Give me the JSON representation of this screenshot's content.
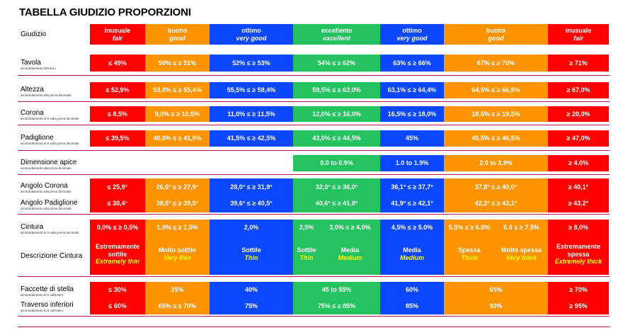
{
  "title": "TABELLA GIUDIZIO PROPORZIONI",
  "rows": {
    "giudizio": {
      "label": "Giudizio",
      "cells": [
        {
          "it": "inusuale",
          "en": "fair"
        },
        {
          "it": "buono",
          "en": "good"
        },
        {
          "it": "ottimo",
          "en": "very good"
        },
        {
          "it": "eccellente",
          "en": "excellent"
        },
        {
          "it": "ottimo",
          "en": "very good"
        },
        {
          "it": "buono",
          "en": "good"
        },
        {
          "it": "inusuale",
          "en": "fair"
        }
      ]
    },
    "tavola": {
      "label": "Tavola",
      "note": "arrotondamento all'intero",
      "cells": [
        "≤ 49%",
        "50% ≤ ≥ 51%",
        "52% ≤ ≥ 53%",
        "54% ≤ ≥ 62%",
        "63% ≤ ≥ 66%",
        "67% ≤ ≥ 70%",
        "≥ 71%"
      ]
    },
    "altezza": {
      "label": "Altezza",
      "note": "arrotondamento alla prima decimale",
      "cells": [
        "≤ 52,9%",
        "53,0% ≤ ≥ 55,4%",
        "55,5% ≤ ≥ 58,4%",
        "58,5% ≤ ≥ 63,0%",
        "63,1% ≤ ≥ 64,4%",
        "64,5% ≤ ≥ 66,9%",
        "≥  67,0%"
      ]
    },
    "corona": {
      "label": "Corona",
      "note": "arrotondamento al 5 sulla prima decimale",
      "cells": [
        "≤ 8,5%",
        "9,0% ≤ ≥ 10,5%",
        "11,0% ≤ ≥ 11,5%",
        "12,0% ≤ ≥ 16,0%",
        "16,5% ≤ ≥ 18,0%",
        "18,5% ≤ ≥ 19,5%",
        "≥ 20,0%"
      ]
    },
    "padiglione": {
      "label": "Padiglione",
      "note": "arrotondamento al 5 sulla prima decimale",
      "cells": [
        "≤ 39,5%",
        "40,0% ≤ ≥ 41,0%",
        "41,5% ≤ ≥ 42,5%",
        "43,0% ≤ ≥ 44,5%",
        "45%",
        "45,5% ≤ ≥ 46,5%",
        "≥ 47,0%"
      ]
    },
    "apice": {
      "label": "Dimensione apice",
      "note": "arrotondamento alla prima decimale",
      "cells": [
        "0.0 to 0.9%",
        "1.0 to 1.9%",
        "2.0 to 3.9%",
        "≥ 4.0%"
      ]
    },
    "angolo_corona": {
      "label": "Angolo Corona",
      "note": "arrotondamento alla prima decimale",
      "cells": [
        "≤ 25,9°",
        "26,0° ≤ ≥ 27,9°",
        "28,0° ≤ ≥ 31,9°",
        "32,0° ≤ ≥ 36,0°",
        "36,1° ≤ ≥ 37,7°",
        "37,8° ≤ ≥ 40,0°",
        "≥ 40,1°"
      ]
    },
    "angolo_padiglione": {
      "label": "Angolo Padiglione",
      "note": "arrotondamento alla prima decimale",
      "cells": [
        "≤ 38,4°",
        "38,5° ≤ ≥ 39,5°",
        "39,6° ≤ ≥ 40,5°",
        "40,6° ≤ ≥ 41,8°",
        "41,9° ≤ ≥ 42,1°",
        "42,2° ≤ ≥ 43,1°",
        "≥ 43,2°"
      ]
    },
    "cintura": {
      "label": "Cintura",
      "note": "arrotondamento al 5 sulla prima decimale",
      "cells": [
        "0,0% ≤ ≥ 0,5%",
        "1,0% ≤ ≥ 1,5%",
        "2,0%",
        "2,5%",
        "3,0% ≤ ≥ 4,0%",
        "4,5% ≤ ≥ 5.0%",
        "5.5% ≤ ≥ 6.0%",
        "6.5 ≤ ≥ 7.5%",
        "≥ 8,0%"
      ]
    },
    "descrizione": {
      "label": "Descrizione Cintura",
      "cells": [
        {
          "it": "Estremamente sottile",
          "en": "Extremely thin"
        },
        {
          "it": "Molto sottile",
          "en": "Very thin"
        },
        {
          "it": "Sottile",
          "en": "Thin"
        },
        {
          "it": "Sottile",
          "en": "Thin"
        },
        {
          "it": "Media",
          "en": "Medium"
        },
        {
          "it": "Media",
          "en": "Medium"
        },
        {
          "it": "Spessa",
          "en": "Thick"
        },
        {
          "it": "Molto spessa",
          "en": "Very thick"
        },
        {
          "it": "Estremamente spessa",
          "en": "Extremely thick"
        }
      ]
    },
    "faccette": {
      "label": "Faccette di stella",
      "note": "arrotondamento al 5 sull'intero",
      "cells": [
        "≤ 30%",
        "35%",
        "40%",
        "45 to 55%",
        "60%",
        "65%",
        "≥ 70%"
      ]
    },
    "traverso": {
      "label": "Traverso inferiori",
      "note": "arrotondamento al 5 sull'intero",
      "cells": [
        "≤ 60%",
        "65% ≤ ≥ 70%",
        "75%",
        "75% ≤ ≥ 85%",
        "85%",
        "90%",
        "≥ 95%"
      ]
    }
  },
  "colors": {
    "red": "#ff0000",
    "orange": "#ff9300",
    "blue": "#0a47ff",
    "green": "#24c35f",
    "line": "#b3165a",
    "yellow": "#ffff00"
  }
}
